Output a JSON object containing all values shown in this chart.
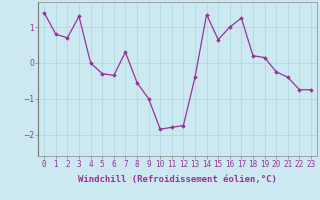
{
  "x": [
    0,
    1,
    2,
    3,
    4,
    5,
    6,
    7,
    8,
    9,
    10,
    11,
    12,
    13,
    14,
    15,
    16,
    17,
    18,
    19,
    20,
    21,
    22,
    23
  ],
  "y": [
    1.4,
    0.8,
    0.7,
    1.3,
    0.0,
    -0.3,
    -0.35,
    0.3,
    -0.55,
    -1.0,
    -1.85,
    -1.8,
    -1.75,
    -0.4,
    1.35,
    0.65,
    1.0,
    1.25,
    0.2,
    0.15,
    -0.25,
    -0.4,
    -0.75,
    -0.75
  ],
  "line_color": "#993399",
  "marker": "D",
  "marker_size": 1.8,
  "bg_color": "#cce8f0",
  "grid_color": "#aad8e0",
  "xlabel": "Windchill (Refroidissement éolien,°C)",
  "xlabel_fontsize": 6.5,
  "tick_fontsize": 5.5,
  "tick_color": "#993399",
  "label_color": "#993399",
  "ylim": [
    -2.6,
    1.7
  ],
  "yticks": [
    -2,
    -1,
    0,
    1
  ],
  "xlim": [
    -0.5,
    23.5
  ],
  "linewidth": 0.9
}
